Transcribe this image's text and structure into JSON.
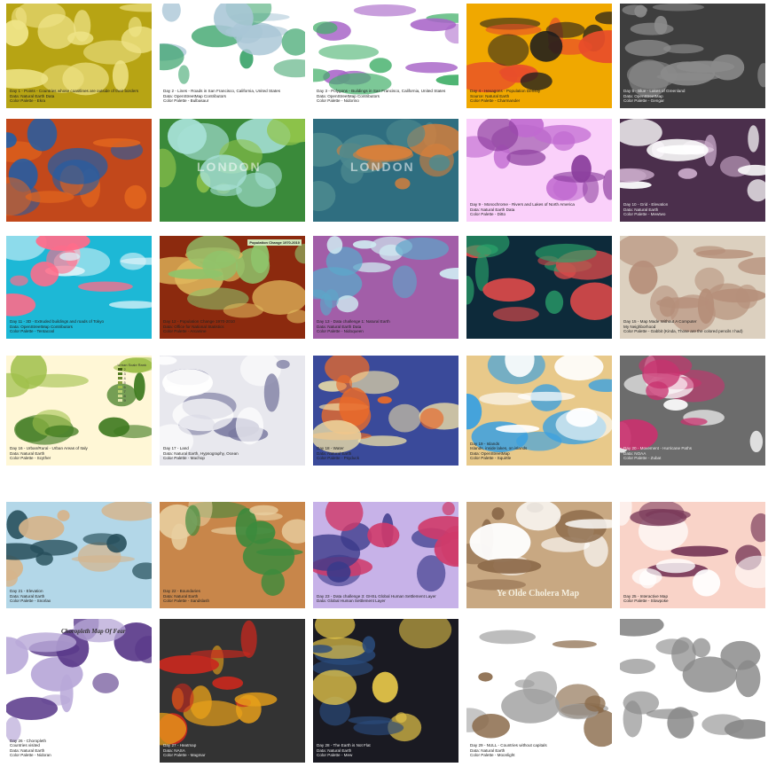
{
  "gallery": {
    "tiles": [
      {
        "id": "day01",
        "cap": [
          "Day 1 - Points - Countries whose coastlines are outside of their borders",
          "Data: Natural Earth Data",
          "Color Palette - Ekra"
        ],
        "colors": [
          "#b7a414",
          "#efe488"
        ]
      },
      {
        "id": "day02",
        "cap": [
          "Day 2 - Lines - Roads in San Francisco, California, United States",
          "Data: OpenStreetMap Contributors",
          "Color Palette - Bulbasaur"
        ],
        "colors": [
          "#ffffff",
          "#3aa36a",
          "#a9c6d6"
        ]
      },
      {
        "id": "day03",
        "cap": [
          "Day 3 - Polygons - Buildings in San Francisco, California, United States",
          "Data: OpenStreetMap Contributors",
          "Color Palette - Nidorino"
        ],
        "colors": [
          "#ffffff",
          "#45b06b",
          "#a864c8"
        ]
      },
      {
        "id": "day04",
        "cap": [
          "Day 4 - Hexagons - Population Density",
          "Source: Natural Earth",
          "Color Palette - Charmander"
        ],
        "colors": [
          "#f0a800",
          "#e84d2a",
          "#1d1d1d"
        ]
      },
      {
        "id": "day05",
        "cap": [
          "Day 5 - Blue - Lakes of Greenland",
          "Data: OpenStreetMap",
          "Color Palette - Gengar"
        ],
        "colors": [
          "#3e3e3e",
          "#8a8a8a"
        ]
      },
      {
        "id": "day06",
        "cap": [],
        "colors": [
          "#c2481b",
          "#1f5ea8",
          "#e0641e"
        ]
      },
      {
        "id": "day07",
        "cap": [],
        "big": "LONDON",
        "colors": [
          "#3a8a3a",
          "#8fc34a",
          "#a6e0d6"
        ]
      },
      {
        "id": "day08",
        "cap": [],
        "big": "LONDON",
        "colors": [
          "#2f6e80",
          "#4d8a8f",
          "#d9803a"
        ]
      },
      {
        "id": "day09",
        "cap": [
          "Day 9 - Monochrome - Rivers and Lakes of North America",
          "Data: Natural Earth Data",
          "Color Palette - Ditto"
        ],
        "colors": [
          "#fad0fa",
          "#c06ad0",
          "#8c3f9e"
        ]
      },
      {
        "id": "day10",
        "cap": [
          "Day 10 - Grid - Elevation",
          "Data: Natural Earth",
          "Color Palette - Mewtwo"
        ],
        "colors": [
          "#4b2f4c",
          "#c8a9c8",
          "#ffffff"
        ]
      },
      {
        "id": "day11",
        "cap": [
          "Day 11 - 3D - Extruded buildings and roads of Tokyo",
          "Data: OpenStreetMap Contributors",
          "Color Palette - Tentacool"
        ],
        "colors": [
          "#1db8d6",
          "#d9f2f8",
          "#ff6c8a"
        ]
      },
      {
        "id": "day12",
        "cap": [
          "Day 12 - Population Change 1970-2010",
          "Data: Office for National Statistics",
          "Color Palette - Arcanine"
        ],
        "title": "Population Change 1970-2010",
        "colors": [
          "#8c2a0e",
          "#e0b85c",
          "#8fc36b"
        ]
      },
      {
        "id": "day13",
        "cap": [
          "Day 13 - Data challenge 1: Natural Earth",
          "Data: Natural Earth Data",
          "Color Palette - Nidoqueen"
        ],
        "colors": [
          "#a25ea8",
          "#5ca7c9",
          "#cfe9f1"
        ]
      },
      {
        "id": "day14",
        "cap": [],
        "colors": [
          "#0d2a3a",
          "#2aa36b",
          "#d94a4a"
        ]
      },
      {
        "id": "day15",
        "cap": [
          "Day 15 - Map Made Without A Computer",
          "My Neighborhood",
          "Color Palette - Gabbit (Kinda, Those are the colored pencils I had)"
        ],
        "colors": [
          "#dcd0bf",
          "#b58f7a"
        ]
      },
      {
        "id": "day16",
        "cap": [
          "Day 16 - Urban/Rural - Urban Areas of Italy",
          "Data: Natural Earth",
          "Color Palette - Scyther"
        ],
        "legend_title": "Urban Scale Rank",
        "legend": [
          "2",
          "3",
          "4",
          "5",
          "6",
          "7",
          "8",
          "9"
        ],
        "colors": [
          "#fff7d6",
          "#3f7a20",
          "#9fbf4a"
        ]
      },
      {
        "id": "day17",
        "cap": [
          "Day 17 - Land",
          "Data: Natural Earth, Hypsography, Ocean",
          "Color Palette - Machop"
        ],
        "colors": [
          "#e8e8ee",
          "#7a7aa0",
          "#ffffff"
        ]
      },
      {
        "id": "day18",
        "cap": [
          "Day 18 - Water",
          "Data: Natural Earth",
          "Color Palette - Psyduck"
        ],
        "colors": [
          "#3a4a9a",
          "#f2e3a8",
          "#e86a2a"
        ]
      },
      {
        "id": "day19",
        "cap": [
          "Day 19 - Islands",
          "Islands, inside lakes, on islands",
          "Data: OpenStreetMap",
          "Color Palette - Squirtle"
        ],
        "colors": [
          "#e8c98a",
          "#3aa0e0",
          "#ffffff"
        ]
      },
      {
        "id": "day20",
        "cap": [
          "Day 20 - Movement - Hurricane Paths",
          "Data: NOAA",
          "Color Palette - Zubat"
        ],
        "colors": [
          "#6c6c6c",
          "#ffffff",
          "#c8326e"
        ]
      },
      {
        "id": "day21",
        "cap": [
          "Day 21 - Elevation",
          "Data: Natural Earth",
          "Color Palette - Snorlax"
        ],
        "colors": [
          "#b3d7e8",
          "#264e5a",
          "#d6b48a"
        ]
      },
      {
        "id": "day22",
        "cap": [
          "Day 22 - Boundaries",
          "Data: Natural Earth",
          "Color Palette - Sandslash"
        ],
        "colors": [
          "#c8864a",
          "#e8cfa0",
          "#3c8a3c"
        ]
      },
      {
        "id": "day23",
        "cap": [
          "Day 23 - Data challenge 3: GHSL Global Human Settlement Layer",
          "Data: Global Human Settlement Layer"
        ],
        "colors": [
          "#c7b2e8",
          "#3b3a8a",
          "#cf3a6a"
        ]
      },
      {
        "id": "day24",
        "cap": [],
        "big": "Ye Olde Cholera Map",
        "colors": [
          "#c8a882",
          "#ffffff",
          "#8c6a4a"
        ]
      },
      {
        "id": "day25",
        "cap": [
          "Day 25 - Interactive Map",
          "Color Palette - Slowpoke"
        ],
        "colors": [
          "#f9d3c8",
          "#7a3a5a",
          "#ffffff"
        ]
      },
      {
        "id": "day26",
        "cap": [
          "Day 26 - Choropleth",
          "Countries visited",
          "Data: Natural Earth",
          "Color Palette - Nidoran"
        ],
        "big": "Choropleth Map Of Fear",
        "colors": [
          "#ffffff",
          "#b8a8d8",
          "#5a3a8a"
        ]
      },
      {
        "id": "day27",
        "cap": [
          "Day 27 - Heatmap",
          "Data: NASA",
          "Color Palette - Magmar"
        ],
        "colors": [
          "#333333",
          "#e8a01a",
          "#c8281e"
        ]
      },
      {
        "id": "day28",
        "cap": [
          "Day 28 - The Earth is Not Flat",
          "Data: Natural Earth",
          "Color Palette - Mew"
        ],
        "colors": [
          "#1a1a22",
          "#2a4a7a",
          "#e8c84a"
        ]
      },
      {
        "id": "day29",
        "cap": [
          "Day 29 - NULL - Countries without capitals",
          "Data: Natural Earth",
          "Color Palette - Moonlight"
        ],
        "colors": [
          "#ffffff",
          "#a0a0a0",
          "#8a6a4a"
        ]
      },
      {
        "id": "day30",
        "cap": [],
        "colors": [
          "#ffffff",
          "#888888"
        ]
      }
    ]
  }
}
